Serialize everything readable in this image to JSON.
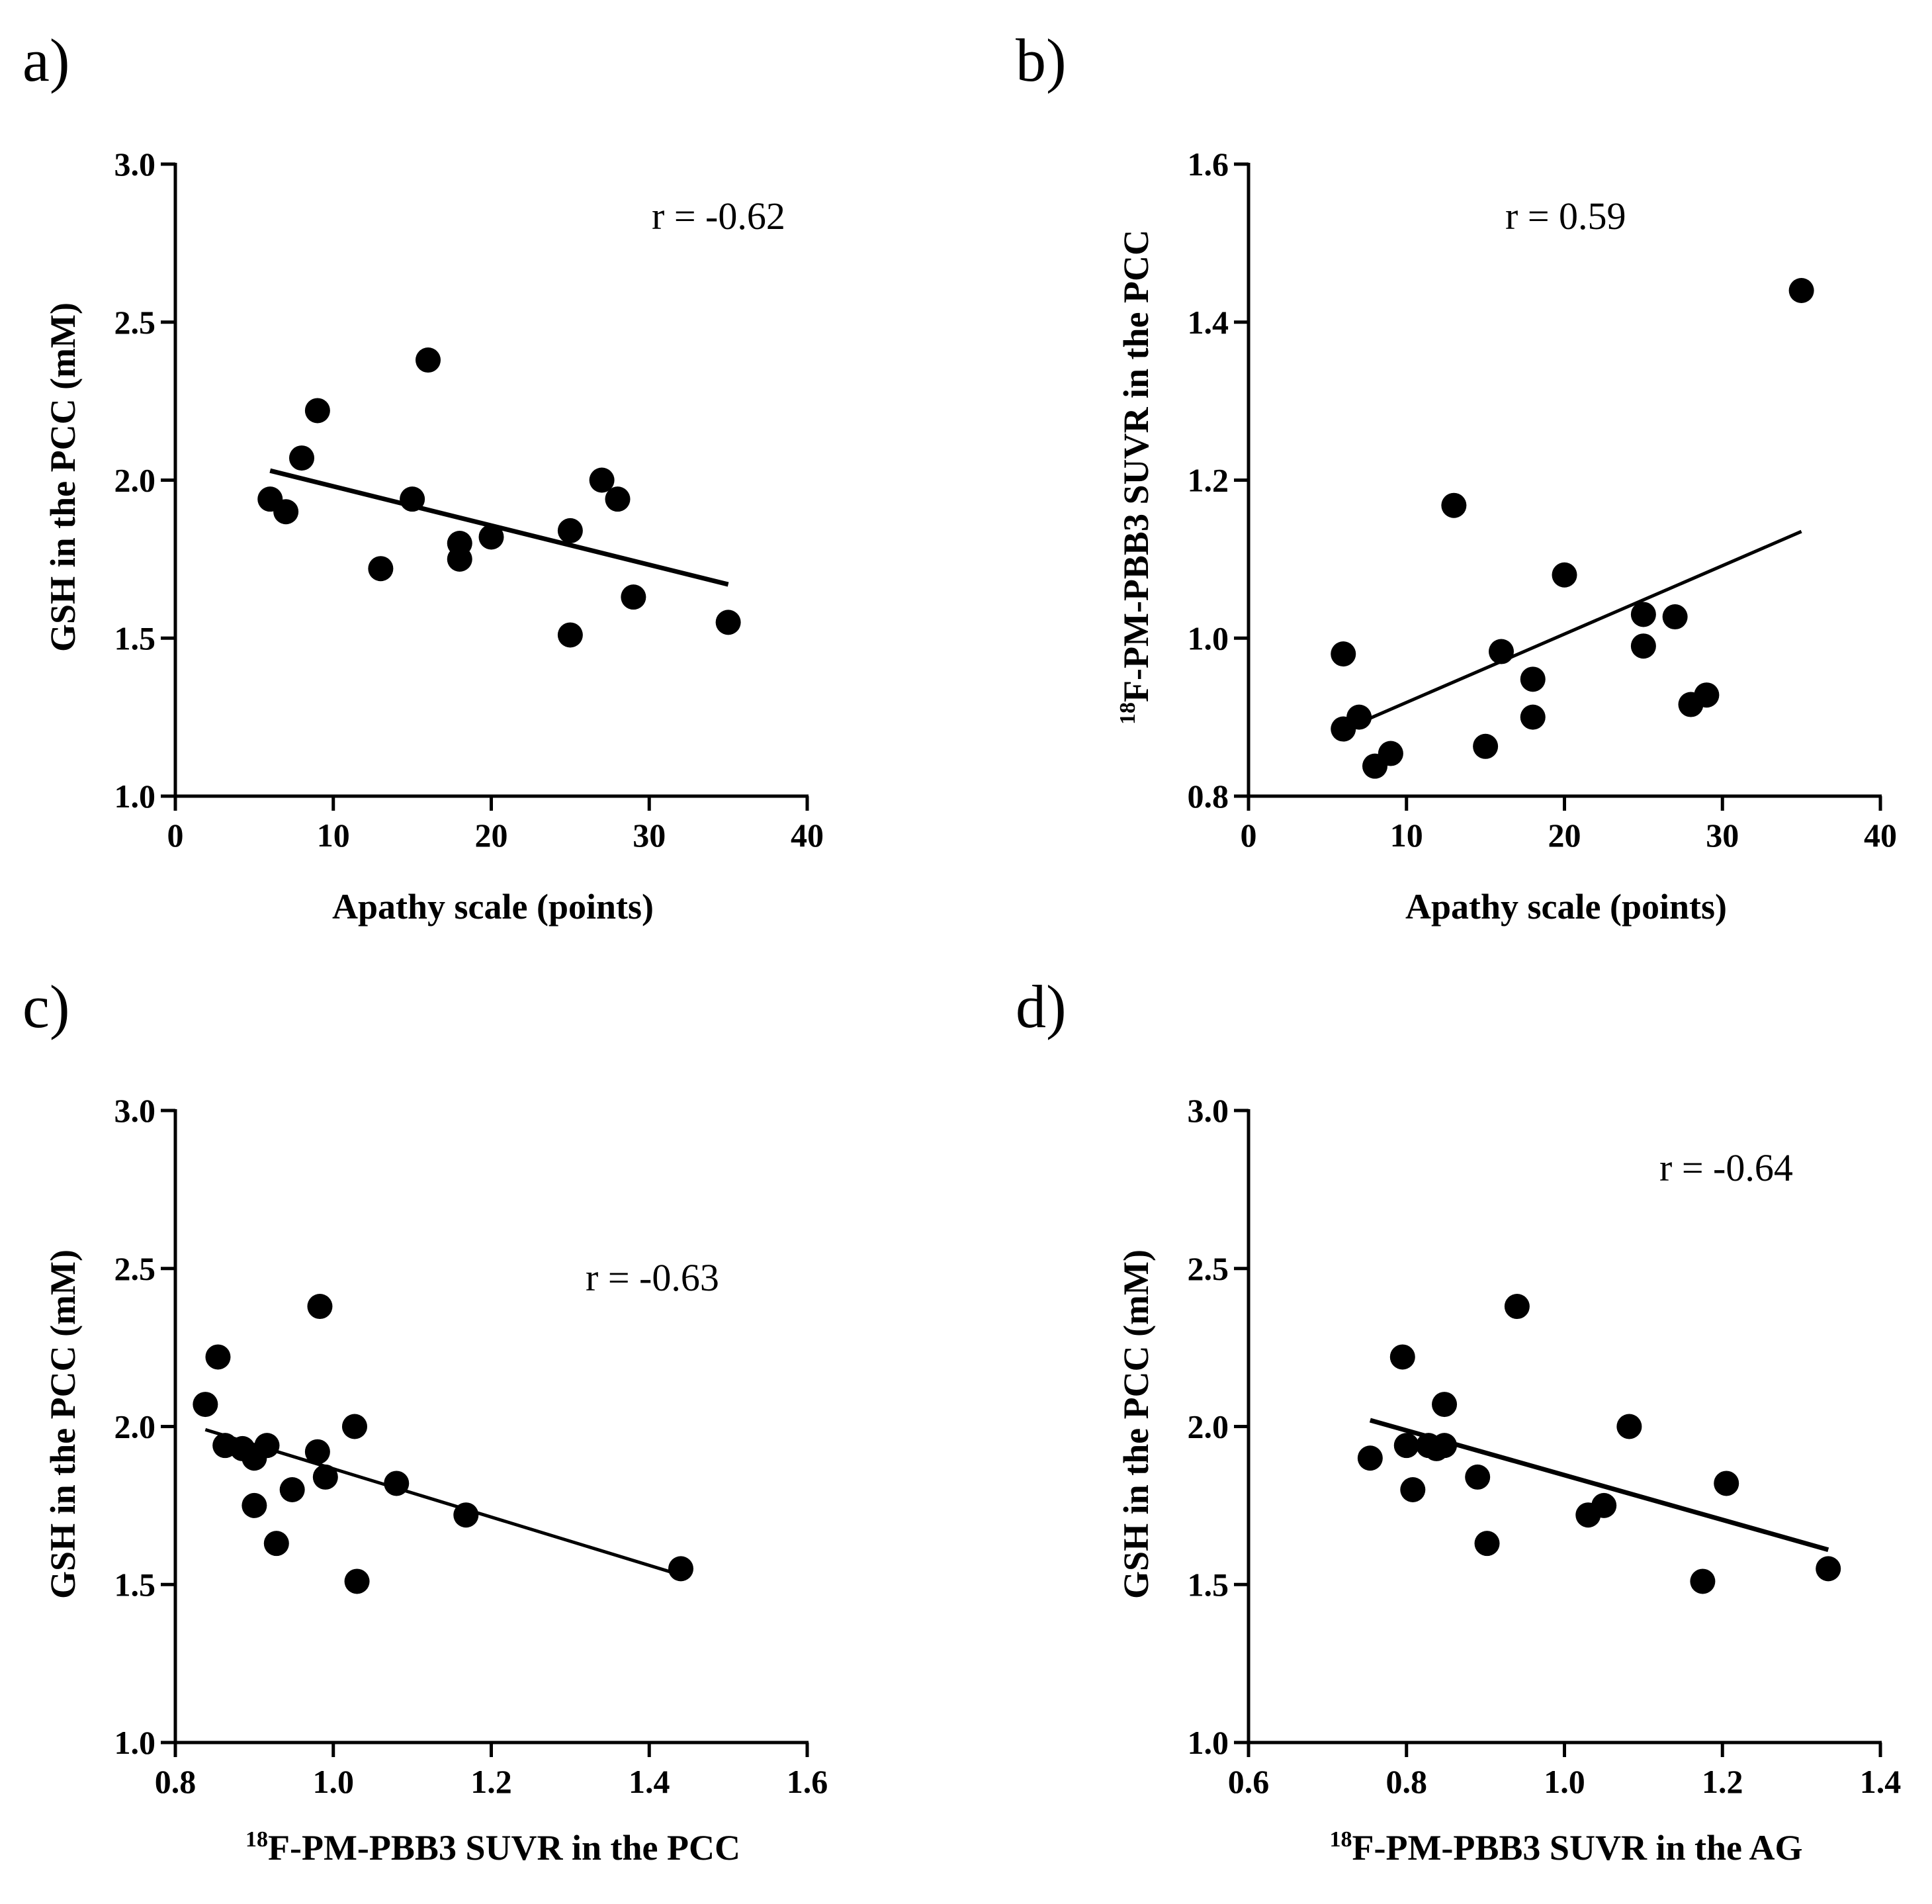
{
  "chart_data": [
    {
      "panel": "a)",
      "type": "scatter",
      "xlabel": "Apathy scale (points)",
      "ylabel": "GSH in the PCC (mM)",
      "xlim": [
        0,
        40
      ],
      "ylim": [
        1.0,
        3.0
      ],
      "xticks": [
        "0",
        "10",
        "20",
        "30",
        "40"
      ],
      "yticks": [
        "1.0",
        "1.5",
        "2.0",
        "2.5",
        "3.0"
      ],
      "annotation": "r = -0.62",
      "points": [
        [
          6,
          1.94
        ],
        [
          7,
          1.9
        ],
        [
          8,
          2.07
        ],
        [
          9,
          2.22
        ],
        [
          13,
          1.72
        ],
        [
          15,
          1.94
        ],
        [
          16,
          2.38
        ],
        [
          18,
          1.8
        ],
        [
          18,
          1.75
        ],
        [
          20,
          1.82
        ],
        [
          25,
          1.84
        ],
        [
          25,
          1.51
        ],
        [
          27,
          2.0
        ],
        [
          28,
          1.94
        ],
        [
          29,
          1.63
        ],
        [
          35,
          1.55
        ]
      ],
      "fit": [
        [
          6,
          2.03
        ],
        [
          35,
          1.67
        ]
      ]
    },
    {
      "panel": "b)",
      "type": "scatter",
      "xlabel": "Apathy scale (points)",
      "ylabel_sup": "18",
      "ylabel": "F-PM-PBB3 SUVR in the PCC",
      "xlim": [
        0,
        40
      ],
      "ylim": [
        0.8,
        1.6
      ],
      "xticks": [
        "0",
        "10",
        "20",
        "30",
        "40"
      ],
      "yticks": [
        "0.8",
        "1.0",
        "1.2",
        "1.4",
        "1.6"
      ],
      "annotation": "r = 0.59",
      "points": [
        [
          6,
          0.98
        ],
        [
          6,
          0.885
        ],
        [
          7,
          0.9
        ],
        [
          8,
          0.838
        ],
        [
          9,
          0.854
        ],
        [
          13,
          1.168
        ],
        [
          15,
          0.863
        ],
        [
          16,
          0.983
        ],
        [
          18,
          0.948
        ],
        [
          18,
          0.9
        ],
        [
          20,
          1.08
        ],
        [
          25,
          1.03
        ],
        [
          25,
          0.99
        ],
        [
          27,
          1.027
        ],
        [
          28,
          0.916
        ],
        [
          29,
          0.928
        ],
        [
          35,
          1.44
        ]
      ],
      "fit": [
        [
          6,
          0.884
        ],
        [
          35,
          1.135
        ]
      ]
    },
    {
      "panel": "c)",
      "type": "scatter",
      "xlabel_sup": "18",
      "xlabel": "F-PM-PBB3 SUVR in the PCC",
      "ylabel": "GSH in the PCC (mM)",
      "xlim": [
        0.8,
        1.6
      ],
      "ylim": [
        1.0,
        3.0
      ],
      "xticks": [
        "0.8",
        "1.0",
        "1.2",
        "1.4",
        "1.6"
      ],
      "yticks": [
        "1.0",
        "1.5",
        "2.0",
        "2.5",
        "3.0"
      ],
      "annotation": "r = -0.63",
      "points": [
        [
          0.838,
          2.07
        ],
        [
          0.854,
          2.22
        ],
        [
          0.863,
          1.94
        ],
        [
          0.885,
          1.93
        ],
        [
          0.9,
          1.9
        ],
        [
          0.9,
          1.75
        ],
        [
          0.916,
          1.94
        ],
        [
          0.928,
          1.63
        ],
        [
          0.948,
          1.8
        ],
        [
          0.98,
          1.92
        ],
        [
          0.983,
          2.38
        ],
        [
          0.99,
          1.84
        ],
        [
          1.027,
          2.0
        ],
        [
          1.03,
          1.51
        ],
        [
          1.08,
          1.82
        ],
        [
          1.168,
          1.72
        ],
        [
          1.44,
          1.55
        ]
      ],
      "fit": [
        [
          0.838,
          1.99
        ],
        [
          1.44,
          1.53
        ]
      ]
    },
    {
      "panel": "d)",
      "type": "scatter",
      "xlabel_sup": "18",
      "xlabel": "F-PM-PBB3 SUVR in the AG",
      "ylabel": "GSH in the PCC (mM)",
      "xlim": [
        0.6,
        1.4
      ],
      "ylim": [
        1.0,
        3.0
      ],
      "xticks": [
        "0.6",
        "0.8",
        "1.0",
        "1.2",
        "1.4"
      ],
      "yticks": [
        "1.0",
        "1.5",
        "2.0",
        "2.5",
        "3.0"
      ],
      "annotation": "r = -0.64",
      "points": [
        [
          0.754,
          1.9
        ],
        [
          0.795,
          2.22
        ],
        [
          0.8,
          1.94
        ],
        [
          0.808,
          1.8
        ],
        [
          0.828,
          1.94
        ],
        [
          0.838,
          1.93
        ],
        [
          0.848,
          2.07
        ],
        [
          0.848,
          1.94
        ],
        [
          0.89,
          1.84
        ],
        [
          0.902,
          1.63
        ],
        [
          0.94,
          2.38
        ],
        [
          1.03,
          1.72
        ],
        [
          1.05,
          1.75
        ],
        [
          1.082,
          2.0
        ],
        [
          1.175,
          1.51
        ],
        [
          1.205,
          1.82
        ],
        [
          1.334,
          1.55
        ]
      ],
      "fit": [
        [
          0.754,
          2.02
        ],
        [
          1.334,
          1.61
        ]
      ]
    }
  ]
}
